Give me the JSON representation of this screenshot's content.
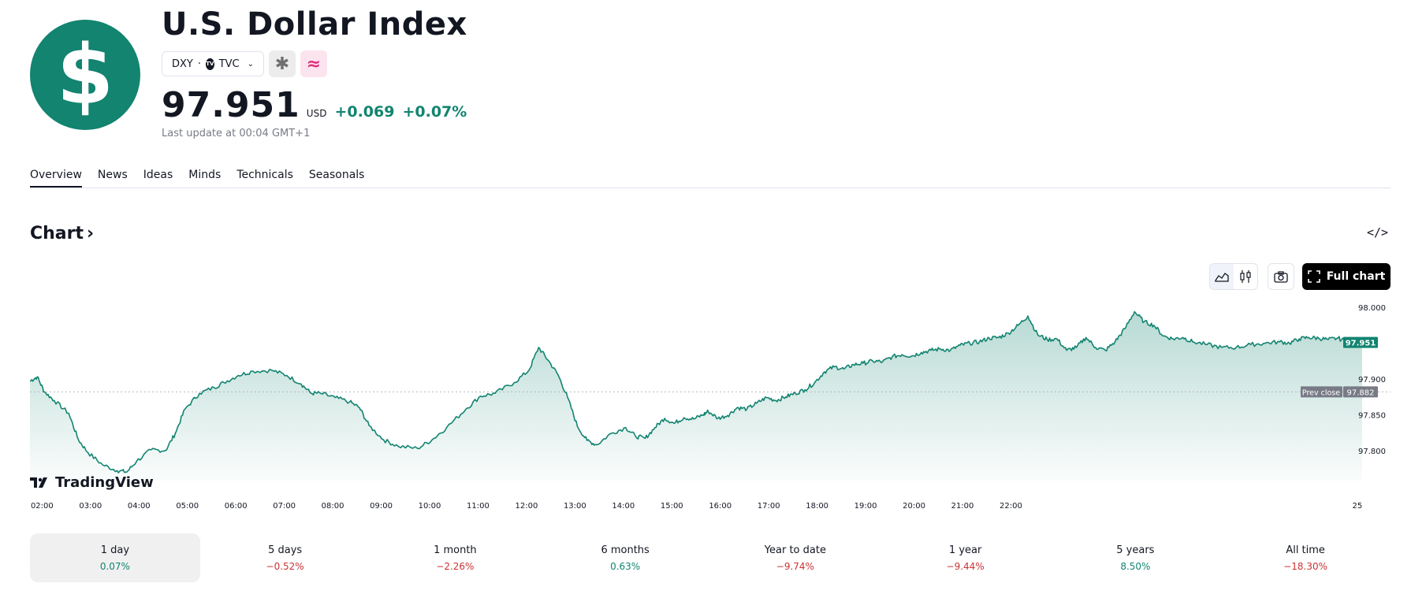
{
  "header": {
    "logo_glyph": "$",
    "title": "U.S. Dollar Index",
    "symbol": "DXY",
    "exchange": "TVC",
    "tv_badge": "TV",
    "price": "97.951",
    "currency": "USD",
    "change": "+0.069",
    "change_percent": "+0.07%",
    "last_update": "Last update at 00:04 GMT+1",
    "accent_color": "#128470"
  },
  "tabs": [
    {
      "label": "Overview",
      "active": true
    },
    {
      "label": "News"
    },
    {
      "label": "Ideas"
    },
    {
      "label": "Minds"
    },
    {
      "label": "Technicals"
    },
    {
      "label": "Seasonals"
    }
  ],
  "chart_section": {
    "heading": "Chart",
    "heading_arrow": "›",
    "embed_glyph": "</>",
    "full_chart_label": "Full chart",
    "watermark": "TradingView"
  },
  "chart_data": {
    "type": "area",
    "x_labels": [
      "02:00",
      "03:00",
      "04:00",
      "05:00",
      "06:00",
      "07:00",
      "08:00",
      "09:00",
      "10:00",
      "11:00",
      "12:00",
      "13:00",
      "14:00",
      "15:00",
      "16:00",
      "17:00",
      "18:00",
      "19:00",
      "20:00",
      "21:00",
      "22:00",
      "25"
    ],
    "y_ticks": [
      98.0,
      97.9,
      97.85,
      97.8
    ],
    "y_tick_labels": [
      "98.000",
      "97.900",
      "97.850",
      "97.800"
    ],
    "ylim": [
      97.758,
      98.02
    ],
    "prev_close": 97.882,
    "prev_close_label": "Prev close",
    "prev_close_value": "97.882",
    "last_value": "97.951",
    "series": [
      {
        "values": [
          [
            0,
            97.897
          ],
          [
            0.15,
            97.903
          ],
          [
            0.3,
            97.882
          ],
          [
            0.5,
            97.87
          ],
          [
            0.8,
            97.852
          ],
          [
            1.0,
            97.815
          ],
          [
            1.2,
            97.797
          ],
          [
            1.5,
            97.78
          ],
          [
            1.8,
            97.772
          ],
          [
            2.0,
            97.77
          ],
          [
            2.2,
            97.785
          ],
          [
            2.5,
            97.801
          ],
          [
            2.8,
            97.8
          ],
          [
            3.0,
            97.824
          ],
          [
            3.2,
            97.858
          ],
          [
            3.5,
            97.88
          ],
          [
            3.8,
            97.888
          ],
          [
            4.0,
            97.895
          ],
          [
            4.3,
            97.905
          ],
          [
            4.6,
            97.911
          ],
          [
            5.0,
            97.912
          ],
          [
            5.3,
            97.905
          ],
          [
            5.6,
            97.893
          ],
          [
            5.8,
            97.88
          ],
          [
            6.0,
            97.88
          ],
          [
            6.3,
            97.874
          ],
          [
            6.6,
            97.868
          ],
          [
            6.8,
            97.86
          ],
          [
            7.0,
            97.835
          ],
          [
            7.3,
            97.815
          ],
          [
            7.6,
            97.806
          ],
          [
            8.0,
            97.803
          ],
          [
            8.3,
            97.815
          ],
          [
            8.6,
            97.832
          ],
          [
            9.0,
            97.858
          ],
          [
            9.3,
            97.876
          ],
          [
            9.6,
            97.88
          ],
          [
            10.0,
            97.895
          ],
          [
            10.3,
            97.912
          ],
          [
            10.5,
            97.944
          ],
          [
            10.7,
            97.926
          ],
          [
            10.9,
            97.906
          ],
          [
            11.1,
            97.874
          ],
          [
            11.3,
            97.834
          ],
          [
            11.5,
            97.814
          ],
          [
            11.7,
            97.808
          ],
          [
            12.0,
            97.824
          ],
          [
            12.3,
            97.832
          ],
          [
            12.5,
            97.82
          ],
          [
            12.7,
            97.817
          ],
          [
            12.9,
            97.832
          ],
          [
            13.1,
            97.845
          ],
          [
            13.3,
            97.838
          ],
          [
            13.5,
            97.846
          ],
          [
            13.7,
            97.844
          ],
          [
            13.9,
            97.85
          ],
          [
            14.0,
            97.855
          ],
          [
            14.2,
            97.845
          ],
          [
            14.4,
            97.849
          ],
          [
            14.6,
            97.86
          ],
          [
            14.8,
            97.858
          ],
          [
            15.0,
            97.866
          ],
          [
            15.2,
            97.874
          ],
          [
            15.4,
            97.87
          ],
          [
            15.6,
            97.875
          ],
          [
            15.8,
            97.88
          ],
          [
            16.0,
            97.885
          ],
          [
            16.2,
            97.895
          ],
          [
            16.4,
            97.91
          ],
          [
            16.6,
            97.917
          ],
          [
            16.8,
            97.914
          ],
          [
            17.0,
            97.92
          ],
          [
            17.2,
            97.922
          ],
          [
            17.4,
            97.925
          ],
          [
            17.6,
            97.924
          ],
          [
            17.8,
            97.931
          ],
          [
            18.0,
            97.934
          ],
          [
            18.2,
            97.932
          ],
          [
            18.4,
            97.937
          ],
          [
            18.6,
            97.94
          ],
          [
            18.8,
            97.942
          ],
          [
            19.0,
            97.94
          ],
          [
            19.2,
            97.947
          ],
          [
            19.4,
            97.95
          ],
          [
            19.6,
            97.952
          ],
          [
            19.8,
            97.957
          ],
          [
            20.0,
            97.958
          ],
          [
            20.2,
            97.964
          ],
          [
            20.4,
            97.975
          ],
          [
            20.6,
            97.988
          ],
          [
            20.8,
            97.962
          ],
          [
            21.0,
            97.955
          ],
          [
            21.2,
            97.956
          ],
          [
            21.4,
            97.94
          ],
          [
            21.6,
            97.944
          ],
          [
            21.8,
            97.958
          ],
          [
            22.0,
            97.944
          ],
          [
            22.2,
            97.94
          ],
          [
            22.4,
            97.952
          ],
          [
            22.6,
            97.97
          ],
          [
            22.8,
            97.994
          ],
          [
            23.0,
            97.98
          ],
          [
            23.2,
            97.975
          ],
          [
            23.4,
            97.96
          ],
          [
            23.6,
            97.956
          ],
          [
            23.8,
            97.958
          ],
          [
            24.0,
            97.952
          ],
          [
            24.3,
            97.948
          ],
          [
            24.6,
            97.944
          ],
          [
            24.9,
            97.944
          ],
          [
            25.2,
            97.948
          ],
          [
            25.5,
            97.95
          ],
          [
            25.8,
            97.952
          ],
          [
            26.0,
            97.95
          ],
          [
            26.2,
            97.956
          ],
          [
            26.4,
            97.958
          ],
          [
            26.6,
            97.957
          ],
          [
            26.8,
            97.955
          ],
          [
            27.0,
            97.957
          ],
          [
            27.2,
            97.952
          ],
          [
            27.4,
            97.95
          ],
          [
            27.5,
            97.951
          ]
        ]
      }
    ],
    "grid": false
  },
  "periods": [
    {
      "label": "1 day",
      "value": "0.07%",
      "dir": "pos",
      "selected": true
    },
    {
      "label": "5 days",
      "value": "−0.52%",
      "dir": "neg"
    },
    {
      "label": "1 month",
      "value": "−2.26%",
      "dir": "neg"
    },
    {
      "label": "6 months",
      "value": "0.63%",
      "dir": "pos"
    },
    {
      "label": "Year to date",
      "value": "−9.74%",
      "dir": "neg"
    },
    {
      "label": "1 year",
      "value": "−9.44%",
      "dir": "neg"
    },
    {
      "label": "5 years",
      "value": "8.50%",
      "dir": "pos"
    },
    {
      "label": "All time",
      "value": "−18.30%",
      "dir": "neg"
    }
  ]
}
